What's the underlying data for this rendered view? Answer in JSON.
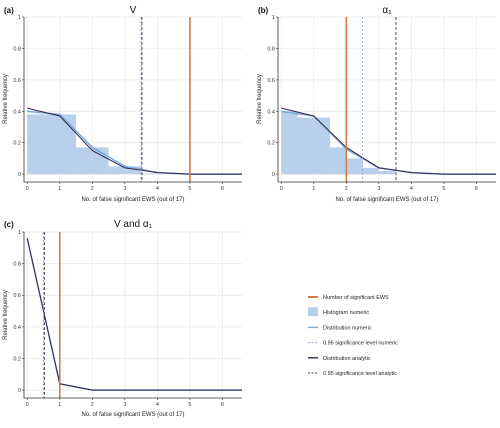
{
  "colors": {
    "significant": "#d67a4a",
    "histogram": "#b8d0ec",
    "dist_numeric": "#7aaed8",
    "sig_numeric": "#8aaccc",
    "dist_analytic": "#3a2646",
    "sig_analytic": "#3a3452",
    "grid": "#e8e8e8"
  },
  "legend": {
    "placement": "bottom-right",
    "items": [
      {
        "label": "Number of significant EWS",
        "kind": "vline-solid",
        "color_key": "significant"
      },
      {
        "label": "Histogram numeric",
        "kind": "box",
        "color_key": "histogram"
      },
      {
        "label": "Distribution numeric",
        "kind": "line-solid",
        "color_key": "dist_numeric"
      },
      {
        "label": "0.95 significance level numeric",
        "kind": "line-dashed",
        "color_key": "sig_numeric"
      },
      {
        "label": "Distribution analytic",
        "kind": "line-solid",
        "color_key": "dist_analytic"
      },
      {
        "label": "0.95 significance level analytic",
        "kind": "line-dashed",
        "color_key": "sig_analytic"
      }
    ]
  },
  "chart_data": [
    {
      "panel": "(a)",
      "title": "V",
      "type": "bar",
      "xlabel": "No. of false significant EWS (out of 17)",
      "ylabel": "Relative frequency",
      "xlim": [
        -0.1,
        6.6
      ],
      "ylim": [
        -0.05,
        1.0
      ],
      "xticks": [
        0,
        1,
        2,
        3,
        4,
        5,
        6
      ],
      "yticks": [
        0.0,
        0.2,
        0.4,
        0.6,
        0.8,
        1.0
      ],
      "grid": true,
      "histogram": {
        "bin_width": 0.5,
        "bins": [
          {
            "x": 0.0,
            "h": 0.38
          },
          {
            "x": 0.5,
            "h": 0.38
          },
          {
            "x": 1.0,
            "h": 0.38
          },
          {
            "x": 1.5,
            "h": 0.17
          },
          {
            "x": 2.0,
            "h": 0.17
          },
          {
            "x": 2.5,
            "h": 0.05
          },
          {
            "x": 3.0,
            "h": 0.05
          },
          {
            "x": 3.5,
            "h": 0.005
          }
        ]
      },
      "dist_numeric": {
        "x": [
          0,
          1,
          2,
          3,
          4,
          5,
          6,
          6.6
        ],
        "y": [
          0.4,
          0.38,
          0.17,
          0.05,
          0.01,
          0.0,
          0.0,
          0.0
        ]
      },
      "dist_analytic": {
        "x": [
          0,
          1,
          2,
          3,
          4,
          5,
          6,
          6.6
        ],
        "y": [
          0.42,
          0.37,
          0.15,
          0.04,
          0.01,
          0.0,
          0.0,
          0.0
        ]
      },
      "sig_numeric": 3.5,
      "sig_analytic": 3.5,
      "significant": 5
    },
    {
      "panel": "(b)",
      "title": "α₁",
      "type": "bar",
      "xlabel": "No. of false significant EWS (out of 17)",
      "ylabel": "Relative frequency",
      "xlim": [
        -0.1,
        6.6
      ],
      "ylim": [
        -0.05,
        1.0
      ],
      "xticks": [
        0,
        1,
        2,
        3,
        4,
        5,
        6
      ],
      "yticks": [
        0.0,
        0.2,
        0.4,
        0.6,
        0.8,
        1.0
      ],
      "grid": true,
      "histogram": {
        "bin_width": 0.5,
        "bins": [
          {
            "x": 0.0,
            "h": 0.4
          },
          {
            "x": 0.5,
            "h": 0.36
          },
          {
            "x": 1.0,
            "h": 0.36
          },
          {
            "x": 1.5,
            "h": 0.17
          },
          {
            "x": 2.0,
            "h": 0.1
          },
          {
            "x": 2.5,
            "h": 0.04
          },
          {
            "x": 3.0,
            "h": 0.02
          }
        ]
      },
      "dist_numeric": {
        "x": [
          0,
          1,
          2,
          3,
          4,
          5,
          6,
          6.6
        ],
        "y": [
          0.4,
          0.37,
          0.16,
          0.04,
          0.01,
          0.0,
          0.0,
          0.0
        ]
      },
      "dist_analytic": {
        "x": [
          0,
          1,
          2,
          3,
          4,
          5,
          6,
          6.6
        ],
        "y": [
          0.42,
          0.37,
          0.17,
          0.04,
          0.01,
          0.0,
          0.0,
          0.0
        ]
      },
      "sig_numeric": 2.5,
      "sig_analytic": 3.5,
      "significant": 2
    },
    {
      "panel": "(c)",
      "title": "V  and  α₁",
      "type": "line",
      "xlabel": "No. of false significant EWS (out of 17)",
      "ylabel": "Relative frequency",
      "xlim": [
        -0.1,
        6.6
      ],
      "ylim": [
        -0.05,
        1.0
      ],
      "xticks": [
        0,
        1,
        2,
        3,
        4,
        5,
        6
      ],
      "yticks": [
        0.0,
        0.2,
        0.4,
        0.6,
        0.8,
        1.0
      ],
      "grid": true,
      "histogram": {
        "bin_width": 0.5,
        "bins": []
      },
      "dist_numeric": {
        "x": [
          0,
          1,
          2,
          3,
          4,
          5,
          6,
          6.6
        ],
        "y": [
          0.96,
          0.04,
          0.0,
          0.0,
          0.0,
          0.0,
          0.0,
          0.0
        ]
      },
      "dist_analytic": {
        "x": [
          0,
          1,
          2,
          3,
          4,
          5,
          6,
          6.6
        ],
        "y": [
          0.96,
          0.04,
          0.0,
          0.0,
          0.0,
          0.0,
          0.0,
          0.0
        ]
      },
      "sig_numeric": 0.5,
      "sig_analytic": 0.5,
      "significant": 1
    }
  ]
}
